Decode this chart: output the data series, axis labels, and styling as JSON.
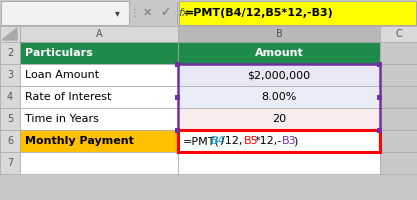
{
  "formula_bar_text": "=PMT(B4/12,B5*12,-B3)",
  "formula_bar_bg": "#FFFF00",
  "formula_bar_text_color": "black",
  "name_box_bg": "#F2F2F2",
  "toolbar_bg": "#F2F2F2",
  "bg_color": "#C8C8C8",
  "col_header_bg": "#D9D9D9",
  "col_b_header_bg": "#B8B8B8",
  "row_num_bg": "#D9D9D9",
  "grid_line_color": "#AAAAAA",
  "border_color": "#888888",
  "rows": [
    {
      "label": "Particulars",
      "value": "Amount",
      "label_bg": "#1E8B4C",
      "value_bg": "#1E8B4C",
      "label_color": "white",
      "value_color": "white",
      "label_bold": true,
      "value_bold": true,
      "value_align": "center"
    },
    {
      "label": "Loan Amount",
      "value": "$2,000,000",
      "label_bg": "#FFFFFF",
      "value_bg": "#E8E8F5",
      "label_color": "black",
      "value_color": "black",
      "label_bold": false,
      "value_bold": false,
      "value_align": "center"
    },
    {
      "label": "Rate of Interest",
      "value": "8.00%",
      "label_bg": "#FFFFFF",
      "value_bg": "#E8EDF8",
      "label_color": "black",
      "value_color": "black",
      "label_bold": false,
      "value_bold": false,
      "value_align": "center"
    },
    {
      "label": "Time in Years",
      "value": "20",
      "label_bg": "#FFFFFF",
      "value_bg": "#F8ECEC",
      "label_color": "black",
      "value_color": "black",
      "label_bold": false,
      "value_bold": false,
      "value_align": "center"
    },
    {
      "label": "Monthly Payment",
      "value": "",
      "label_bg": "#FFC000",
      "value_bg": "#FFFFFF",
      "label_color": "black",
      "value_color": "black",
      "label_bold": true,
      "value_bold": false,
      "value_align": "left"
    }
  ],
  "pmt_formula_parts": [
    {
      "text": "=PMT(",
      "color": "#000000"
    },
    {
      "text": "B4",
      "color": "#00B0F0"
    },
    {
      "text": "/12,",
      "color": "#000000"
    },
    {
      "text": "B5",
      "color": "#FF0000"
    },
    {
      "text": "*12,-",
      "color": "#000000"
    },
    {
      "text": "B3",
      "color": "#7030A0"
    },
    {
      "text": ")",
      "color": "#000000"
    }
  ],
  "purple_color": "#7030A0",
  "red_color": "#FF0000",
  "row_numbers": [
    "2",
    "3",
    "4",
    "5",
    "6",
    "7"
  ]
}
